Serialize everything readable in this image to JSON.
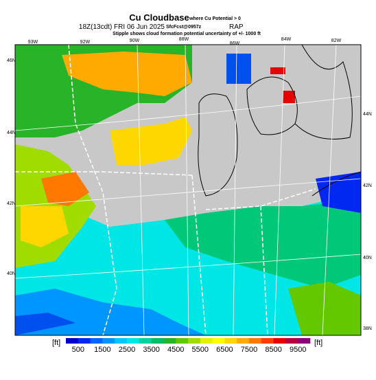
{
  "header": {
    "title": "Cu Cloudbase",
    "title_note": "where Cu Potential > 0",
    "valid_time": "18Z(13cdt) FRI 06 Jun 2025",
    "forecast": "SfcFcst@0957z",
    "model": "RAP",
    "subtitle": "Stipple shows cloud formation potential uncertainty of +/- 1000 ft"
  },
  "map": {
    "lon_labels": [
      "93W",
      "92W",
      "90W",
      "88W",
      "86W",
      "84W",
      "82W"
    ],
    "lat_labels_left": [
      "46N",
      "44N",
      "42N",
      "40N"
    ],
    "lat_labels_right": [
      "44N",
      "42N",
      "40N",
      "38N"
    ]
  },
  "colorbar": {
    "unit_left": "[ft]",
    "unit_right": "[ft]",
    "labels": [
      500,
      1500,
      2500,
      3500,
      4500,
      5500,
      6500,
      7500,
      8500,
      9500
    ],
    "colors": [
      "#0000c8",
      "#0028f0",
      "#0064ff",
      "#0096ff",
      "#00c8ff",
      "#00e6e6",
      "#00d2a0",
      "#00be64",
      "#28b428",
      "#64c800",
      "#a0dc00",
      "#e6f000",
      "#ffff00",
      "#ffd700",
      "#ffaa00",
      "#ff7800",
      "#ff3c00",
      "#e60000",
      "#b4003c",
      "#8c0078"
    ]
  }
}
